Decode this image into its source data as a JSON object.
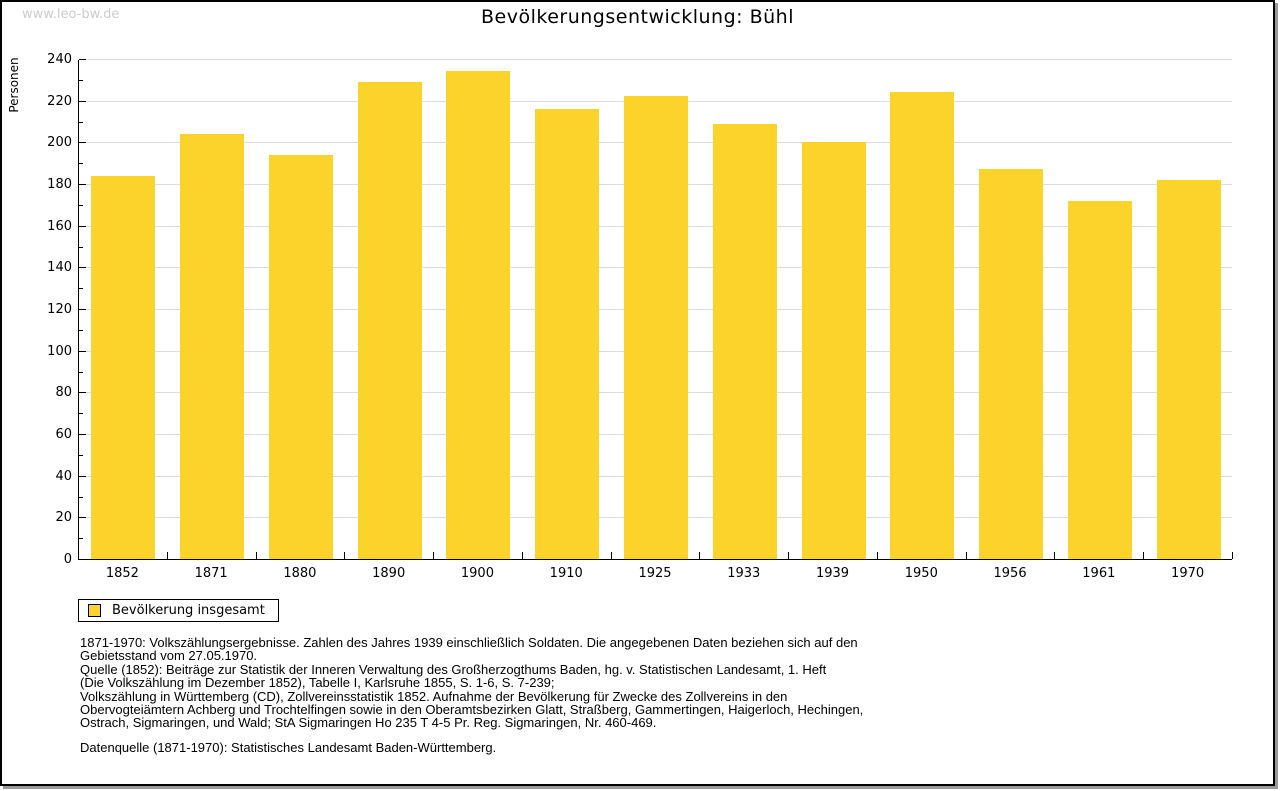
{
  "watermark": "www.leo-bw.de",
  "title": "Bevölkerungsentwicklung: Bühl",
  "chart_data": {
    "type": "bar",
    "title": "Bevölkerungsentwicklung: Bühl",
    "xlabel": "",
    "ylabel": "Personen",
    "categories": [
      "1852",
      "1871",
      "1880",
      "1890",
      "1900",
      "1910",
      "1925",
      "1933",
      "1939",
      "1950",
      "1956",
      "1961",
      "1970"
    ],
    "values": [
      184,
      204,
      194,
      229,
      234,
      216,
      222,
      209,
      200,
      224,
      187,
      172,
      182
    ],
    "series_name": "Bevölkerung insgesamt",
    "ylim": [
      0,
      240
    ],
    "ytick_step": 20,
    "minor_tick_step": 10,
    "grid": true,
    "legend_position": "bottom-left",
    "bar_color": "#FCD32B"
  },
  "legend": {
    "label": "Bevölkerung insgesamt"
  },
  "footer": {
    "notes_lines": [
      "1871-1970: Volkszählungsergebnisse. Zahlen des Jahres 1939 einschließlich Soldaten. Die angegebenen Daten beziehen sich auf den",
      "Gebietsstand vom 27.05.1970.",
      "Quelle (1852): Beiträge zur Statistik der Inneren Verwaltung des Großherzogthums Baden, hg. v. Statistischen Landesamt, 1. Heft",
      "(Die Volkszählung im Dezember 1852), Tabelle I, Karlsruhe 1855, S. 1-6, S. 7-239;",
      "Volkszählung in Württemberg (CD), Zollvereinsstatistik 1852. Aufnahme der Bevölkerung für Zwecke des Zollvereins in den",
      "Obervogteiämtern Achberg und Trochtelfingen sowie in den Oberamtsbezirken Glatt, Straßberg, Gammertingen, Haigerloch, Hechingen,",
      "Ostrach, Sigmaringen, und Wald; StA Sigmaringen Ho 235 T 4-5 Pr. Reg. Sigmaringen, Nr. 460-469."
    ],
    "datenquelle": "Datenquelle (1871-1970): Statistisches Landesamt Baden-Württemberg."
  },
  "colors": {
    "bar": "#FCD32B",
    "grid": "#DCDCDC",
    "axis": "#000000",
    "watermark": "#CCCCCC"
  }
}
